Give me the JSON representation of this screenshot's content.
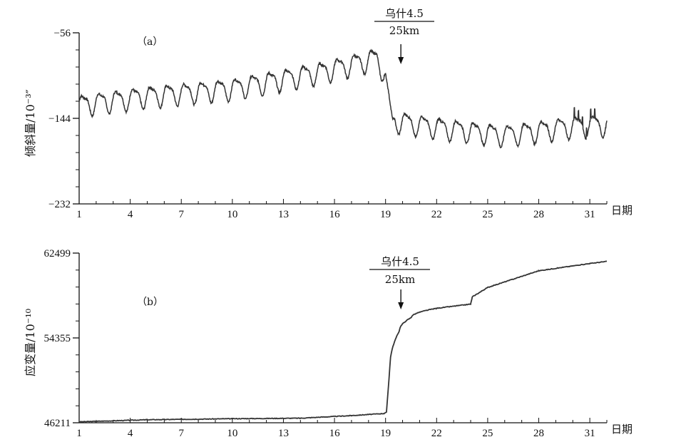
{
  "chart_data": [
    {
      "type": "line",
      "panel_label": "（a）",
      "ylabel": "倾斜量/10⁻³″",
      "xlabel": "日期",
      "x_ticks": [
        1,
        4,
        7,
        10,
        13,
        16,
        19,
        22,
        25,
        28,
        31
      ],
      "y_ticks": [
        -56,
        -144,
        -232
      ],
      "ylim": [
        -232,
        -56
      ],
      "xlim": [
        1,
        32
      ],
      "event": {
        "label": "乌什4.5",
        "distance": "25km",
        "day": 19.9
      },
      "series_shape": {
        "baseline_points": [
          [
            1,
            -130
          ],
          [
            5,
            -121
          ],
          [
            10,
            -113
          ],
          [
            15,
            -97
          ],
          [
            18.5,
            -82
          ],
          [
            19.0,
            -100
          ],
          [
            19.4,
            -146
          ],
          [
            22,
            -153
          ],
          [
            26,
            -161
          ],
          [
            30,
            -152
          ],
          [
            32,
            -150
          ]
        ],
        "diurnal_amplitude": 10
      }
    },
    {
      "type": "line",
      "panel_label": "（b）",
      "ylabel": "应变量/10⁻¹⁰",
      "xlabel": "日期",
      "x_ticks": [
        1,
        4,
        7,
        10,
        13,
        16,
        19,
        22,
        25,
        28,
        31
      ],
      "y_ticks": [
        62499,
        54355,
        46211
      ],
      "ylim": [
        46211,
        62499
      ],
      "xlim": [
        1,
        32
      ],
      "event": {
        "label": "乌什4.5",
        "distance": "25km",
        "day": 19.9
      },
      "points": [
        [
          1,
          46300
        ],
        [
          5,
          46500
        ],
        [
          10,
          46600
        ],
        [
          14,
          46650
        ],
        [
          17,
          46900
        ],
        [
          18.9,
          47100
        ],
        [
          19.05,
          47200
        ],
        [
          19.25,
          51500
        ],
        [
          19.8,
          55000
        ],
        [
          20.5,
          56300
        ],
        [
          22,
          57200
        ],
        [
          24,
          57600
        ],
        [
          24.1,
          58300
        ],
        [
          25,
          59200
        ],
        [
          28,
          60800
        ],
        [
          31,
          61500
        ],
        [
          32,
          61700
        ]
      ]
    }
  ]
}
